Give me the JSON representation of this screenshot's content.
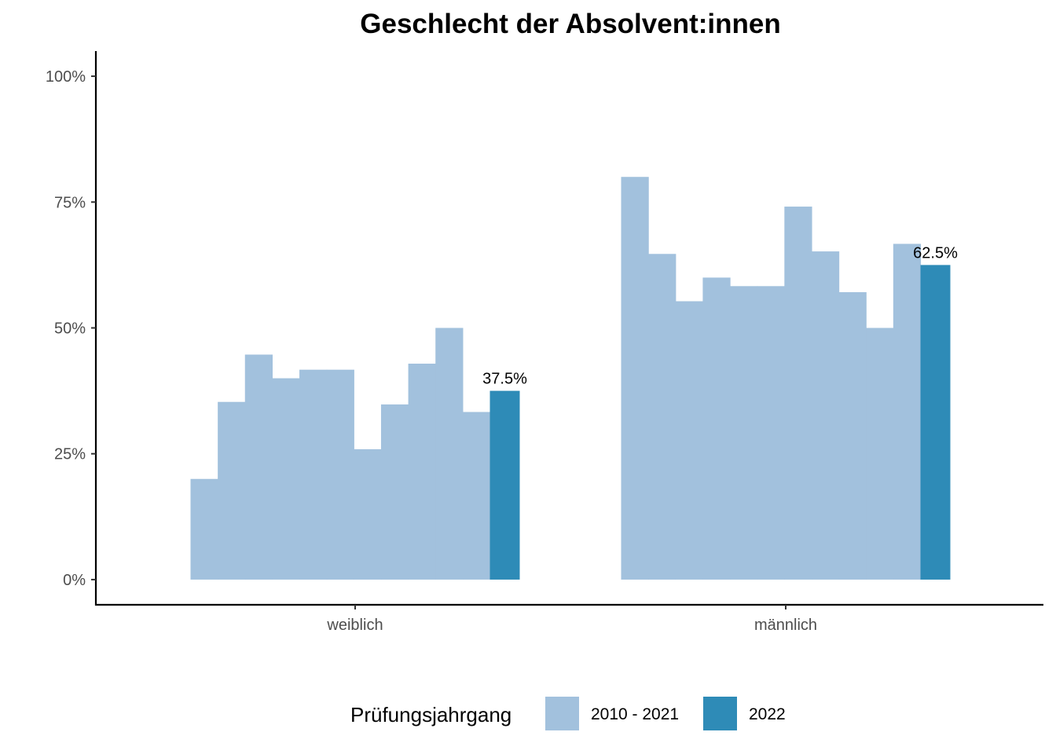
{
  "chart_data": {
    "type": "bar",
    "title": "Geschlecht der Absolvent:innen",
    "xlabel": "",
    "ylabel": "",
    "categories": [
      "weiblich",
      "männlich"
    ],
    "ylim": [
      -0.05,
      1.05
    ],
    "yticks": [
      0,
      0.25,
      0.5,
      0.75,
      1.0
    ],
    "ytick_labels": [
      "0%",
      "25%",
      "50%",
      "75%",
      "100%"
    ],
    "series": [
      {
        "name": "2010 - 2021",
        "color": "#a2c1dd",
        "values": {
          "weiblich": [
            0.2,
            0.353,
            0.447,
            0.4,
            0.417,
            0.417,
            0.259,
            0.348,
            0.429,
            0.5,
            0.333
          ],
          "männlich": [
            0.8,
            0.647,
            0.553,
            0.6,
            0.583,
            0.583,
            0.741,
            0.652,
            0.571,
            0.5,
            0.667
          ]
        }
      },
      {
        "name": "2022",
        "color": "#2e8bb7",
        "values": {
          "weiblich": [
            0.375
          ],
          "männlich": [
            0.625
          ]
        }
      }
    ],
    "data_labels": [
      {
        "category": "weiblich",
        "value": 0.375,
        "text": "37.5%"
      },
      {
        "category": "männlich",
        "value": 0.625,
        "text": "62.5%"
      }
    ],
    "legend": {
      "title": "Prüfungsjahrgang",
      "position": "bottom",
      "entries": [
        {
          "label": "2010 - 2021",
          "color": "#a2c1dd"
        },
        {
          "label": "2022",
          "color": "#2e8bb7"
        }
      ]
    },
    "grid": false
  }
}
